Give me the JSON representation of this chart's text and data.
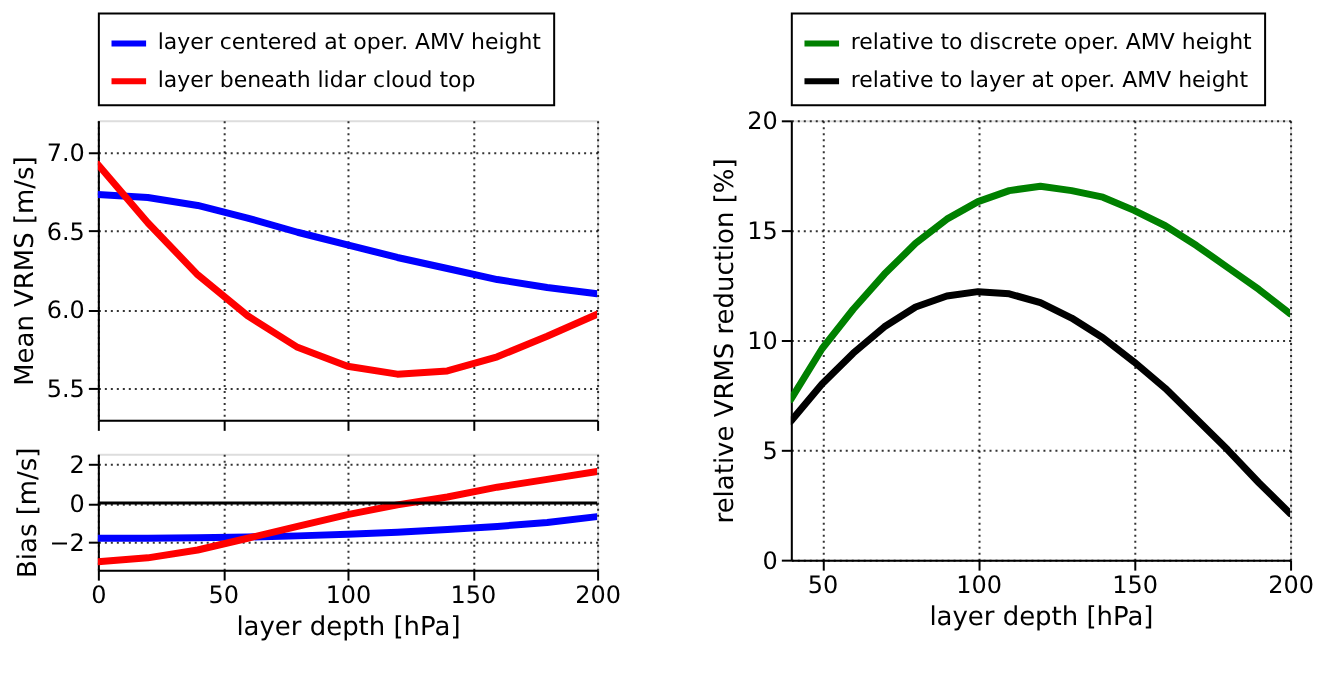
{
  "chart_data": [
    {
      "type": "line",
      "ylabel": "Mean VRMS [m/s]",
      "x": [
        0,
        20,
        40,
        60,
        80,
        100,
        120,
        140,
        160,
        180,
        200
      ],
      "xlim": [
        0,
        200
      ],
      "xticks": [
        0,
        50,
        100,
        150,
        200
      ],
      "ylim": [
        5.3,
        7.2
      ],
      "yticks": [
        5.5,
        {
          "value": 6,
          "label": "6.0"
        },
        6.5,
        {
          "value": 7,
          "label": "7.0"
        }
      ],
      "grid": true,
      "legend": "top",
      "tick_labels": "y",
      "series": [
        {
          "name": "layer centered at oper. AMV height",
          "color": "#0000ff",
          "values": [
            6.73,
            6.71,
            6.66,
            6.58,
            6.49,
            6.41,
            6.33,
            6.26,
            6.19,
            6.14,
            6.1
          ]
        },
        {
          "name": "layer beneath lidar cloud top",
          "color": "#ff0000",
          "values": [
            6.92,
            6.55,
            6.22,
            5.96,
            5.76,
            5.64,
            5.59,
            5.61,
            5.7,
            5.83,
            5.97
          ]
        }
      ]
    },
    {
      "type": "line",
      "ylabel": "Bias [m/s]",
      "xlabel": "layer depth [hPa]",
      "x": [
        0,
        20,
        40,
        60,
        80,
        100,
        120,
        140,
        160,
        180,
        200
      ],
      "xlim": [
        0,
        200
      ],
      "xticks": [
        0,
        50,
        100,
        150,
        200
      ],
      "ylim": [
        -3.4,
        2.5
      ],
      "yticks": [
        -2,
        0,
        2
      ],
      "grid": true,
      "ref_lines": [
        {
          "axis": "y",
          "value": 0,
          "color": "#000000"
        }
      ],
      "series": [
        {
          "color": "#0000ff",
          "values": [
            -1.8,
            -1.8,
            -1.78,
            -1.74,
            -1.68,
            -1.6,
            -1.5,
            -1.35,
            -1.2,
            -1.0,
            -0.7
          ]
        },
        {
          "color": "#ff0000",
          "values": [
            -3.0,
            -2.8,
            -2.4,
            -1.8,
            -1.2,
            -0.6,
            -0.1,
            0.3,
            0.8,
            1.2,
            1.6
          ]
        }
      ]
    },
    {
      "type": "line",
      "ylabel": "relative VRMS reduction [%]",
      "xlabel": "layer depth [hPa]",
      "x": [
        40,
        50,
        60,
        70,
        80,
        90,
        100,
        110,
        120,
        130,
        140,
        150,
        160,
        170,
        180,
        190,
        200
      ],
      "xlim": [
        40,
        200
      ],
      "xticks": [
        50,
        100,
        150,
        200
      ],
      "ylim": [
        0,
        20
      ],
      "yticks": [
        0,
        5,
        10,
        15,
        20
      ],
      "grid": true,
      "legend": "top",
      "series": [
        {
          "name": "relative to discrete oper. AMV height",
          "color": "#008000",
          "values": [
            7.3,
            9.6,
            11.4,
            13.0,
            14.4,
            15.5,
            16.3,
            16.8,
            17.0,
            16.8,
            16.5,
            15.9,
            15.2,
            14.3,
            13.3,
            12.3,
            11.2
          ]
        },
        {
          "name": "relative to layer at oper. AMV height",
          "color": "#000000",
          "values": [
            6.3,
            8.0,
            9.4,
            10.6,
            11.5,
            12.0,
            12.2,
            12.1,
            11.7,
            11.0,
            10.1,
            9.0,
            7.8,
            6.4,
            5.0,
            3.5,
            2.1
          ]
        }
      ]
    }
  ]
}
